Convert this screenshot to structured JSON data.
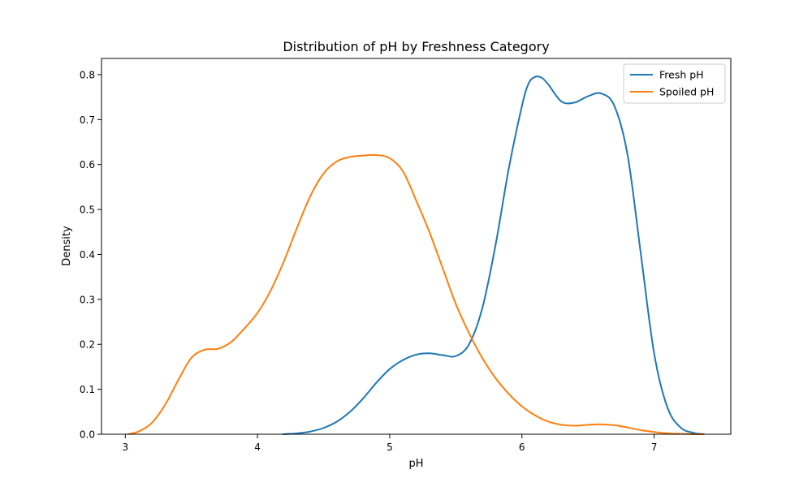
{
  "chart_data": {
    "type": "line",
    "title": "Distribution of pH by Freshness Category",
    "xlabel": "pH",
    "ylabel": "Density",
    "xlim": [
      2.82,
      7.58
    ],
    "ylim": [
      0,
      0.836
    ],
    "xticks": [
      3,
      4,
      5,
      6,
      7
    ],
    "yticks": [
      0.0,
      0.1,
      0.2,
      0.3,
      0.4,
      0.5,
      0.6,
      0.7,
      0.8
    ],
    "grid": false,
    "legend_position": "top-right",
    "series": [
      {
        "name": "Fresh pH",
        "color": "#1f77b4",
        "x": [
          4.19,
          4.3,
          4.4,
          4.5,
          4.6,
          4.7,
          4.8,
          4.9,
          5.0,
          5.1,
          5.2,
          5.3,
          5.4,
          5.5,
          5.6,
          5.7,
          5.8,
          5.9,
          6.0,
          6.05,
          6.1,
          6.15,
          6.2,
          6.3,
          6.4,
          6.5,
          6.6,
          6.7,
          6.8,
          6.9,
          7.0,
          7.1,
          7.2,
          7.3,
          7.38
        ],
        "y": [
          0.0,
          0.002,
          0.006,
          0.014,
          0.028,
          0.05,
          0.08,
          0.115,
          0.145,
          0.165,
          0.177,
          0.18,
          0.176,
          0.174,
          0.2,
          0.28,
          0.42,
          0.59,
          0.73,
          0.78,
          0.795,
          0.793,
          0.778,
          0.74,
          0.738,
          0.752,
          0.758,
          0.73,
          0.62,
          0.4,
          0.18,
          0.06,
          0.015,
          0.003,
          0.0
        ]
      },
      {
        "name": "Spoiled pH",
        "color": "#ff7f0e",
        "x": [
          3.02,
          3.1,
          3.2,
          3.3,
          3.4,
          3.5,
          3.6,
          3.7,
          3.8,
          3.9,
          4.0,
          4.1,
          4.2,
          4.3,
          4.4,
          4.5,
          4.6,
          4.7,
          4.8,
          4.9,
          5.0,
          5.1,
          5.2,
          5.3,
          5.4,
          5.5,
          5.6,
          5.7,
          5.8,
          5.9,
          6.0,
          6.1,
          6.2,
          6.3,
          6.4,
          6.5,
          6.6,
          6.7,
          6.8,
          6.9,
          7.0,
          7.1,
          7.2,
          7.3,
          7.37
        ],
        "y": [
          0.0,
          0.006,
          0.025,
          0.065,
          0.12,
          0.17,
          0.188,
          0.19,
          0.205,
          0.235,
          0.27,
          0.32,
          0.385,
          0.46,
          0.53,
          0.58,
          0.607,
          0.617,
          0.62,
          0.621,
          0.614,
          0.585,
          0.52,
          0.45,
          0.37,
          0.29,
          0.225,
          0.17,
          0.125,
          0.09,
          0.062,
          0.042,
          0.028,
          0.021,
          0.019,
          0.021,
          0.022,
          0.02,
          0.015,
          0.009,
          0.005,
          0.002,
          0.001,
          0.0,
          0.0
        ]
      }
    ]
  }
}
